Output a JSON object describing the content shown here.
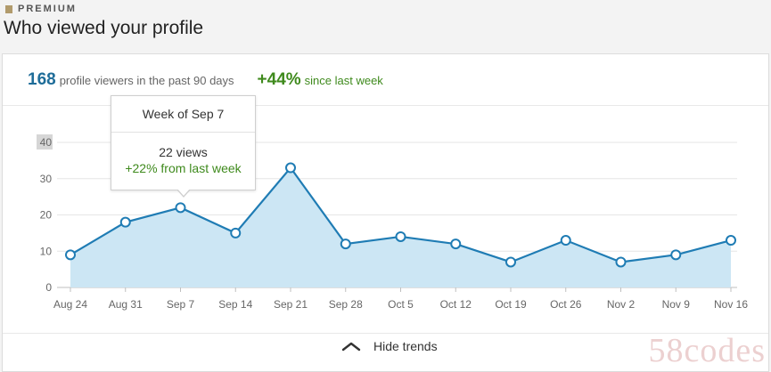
{
  "header": {
    "badge": "PREMIUM",
    "title": "Who viewed your profile"
  },
  "summary": {
    "viewers_count": "168",
    "viewers_label": "profile viewers in the past 90 days",
    "growth_pct": "+44%",
    "growth_label": "since last week"
  },
  "tooltip": {
    "title": "Week of Sep 7",
    "views": "22 views",
    "change": "+22% from last week"
  },
  "footer": {
    "hide_trends_label": "Hide trends"
  },
  "watermark": "58codes",
  "colors": {
    "line": "#1f7cb4",
    "fill": "#cce6f4",
    "grid": "#e6e6e6",
    "accent_blue": "#1f6d99",
    "accent_green": "#3f8a1d"
  },
  "chart_data": {
    "type": "area",
    "categories": [
      "Aug 24",
      "Aug 31",
      "Sep 7",
      "Sep 14",
      "Sep 21",
      "Sep 28",
      "Oct 5",
      "Oct 12",
      "Oct 19",
      "Oct 26",
      "Nov 2",
      "Nov 9",
      "Nov 16"
    ],
    "values": [
      9,
      18,
      22,
      15,
      33,
      12,
      14,
      12,
      7,
      13,
      7,
      9,
      13
    ],
    "yticks": [
      "0",
      "10",
      "20",
      "30",
      "40"
    ],
    "ylim": [
      0,
      40
    ],
    "grid": true,
    "highlighted_category": "Sep 7"
  }
}
